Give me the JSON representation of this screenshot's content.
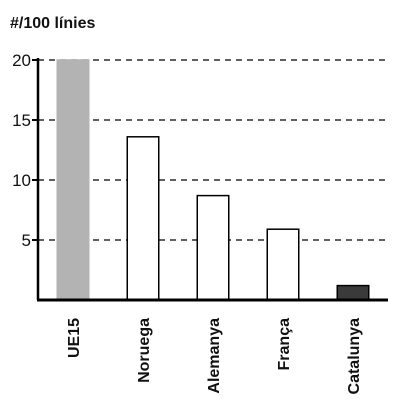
{
  "chart_data": {
    "type": "bar",
    "ylabel": "#/100 línies",
    "xlabel": "",
    "categories": [
      "UE15",
      "Noruega",
      "Alemanya",
      "França",
      "Catalunya"
    ],
    "values": [
      20,
      13.6,
      8.7,
      5.9,
      1.2
    ],
    "bar_colors": [
      "#b3b3b3",
      "#ffffff",
      "#ffffff",
      "#ffffff",
      "#3a3a3a"
    ],
    "ylim": [
      0,
      20
    ],
    "yticks": [
      5,
      10,
      15,
      20
    ],
    "grid": "dashed horizontal"
  }
}
